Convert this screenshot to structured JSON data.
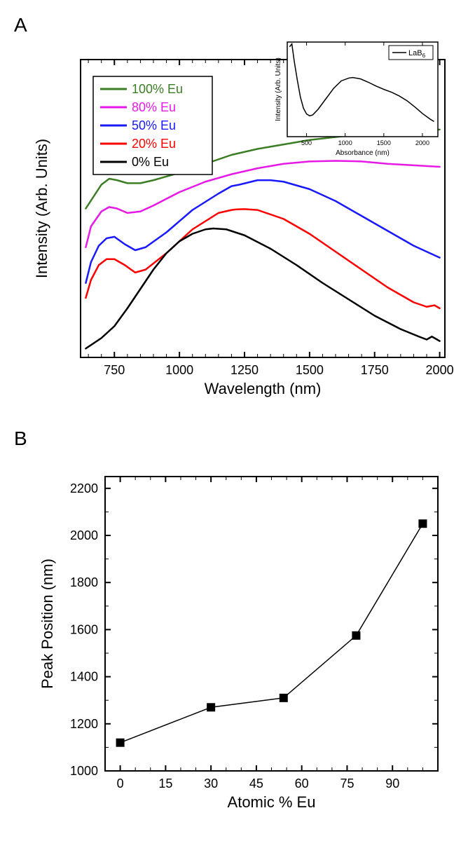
{
  "panelA": {
    "label": "A",
    "label_fontsize": 28,
    "main_chart": {
      "type": "line",
      "xlabel": "Wavelength (nm)",
      "ylabel": "Intensity (Arb. Units)",
      "label_fontsize": 22,
      "tick_fontsize": 18,
      "xlim": [
        620,
        2020
      ],
      "xticks": [
        750,
        1000,
        1250,
        1500,
        1750,
        2000
      ],
      "ylim": [
        0,
        10
      ],
      "background_color": "#ffffff",
      "axis_color": "#000000",
      "axis_width": 2,
      "line_width": 2.5,
      "series": [
        {
          "label": "100% Eu",
          "color": "#3b7d23",
          "points": [
            [
              640,
              5.0
            ],
            [
              670,
              5.4
            ],
            [
              700,
              5.8
            ],
            [
              730,
              6.0
            ],
            [
              760,
              5.95
            ],
            [
              800,
              5.85
            ],
            [
              850,
              5.85
            ],
            [
              900,
              5.95
            ],
            [
              1000,
              6.2
            ],
            [
              1100,
              6.5
            ],
            [
              1200,
              6.8
            ],
            [
              1300,
              7.0
            ],
            [
              1400,
              7.15
            ],
            [
              1500,
              7.3
            ],
            [
              1600,
              7.4
            ],
            [
              1700,
              7.5
            ],
            [
              1800,
              7.55
            ],
            [
              1900,
              7.6
            ],
            [
              2000,
              7.65
            ]
          ]
        },
        {
          "label": "80% Eu",
          "color": "#e619e6",
          "points": [
            [
              640,
              3.7
            ],
            [
              660,
              4.4
            ],
            [
              700,
              4.9
            ],
            [
              730,
              5.05
            ],
            [
              760,
              5.0
            ],
            [
              800,
              4.85
            ],
            [
              850,
              4.9
            ],
            [
              900,
              5.1
            ],
            [
              1000,
              5.55
            ],
            [
              1100,
              5.9
            ],
            [
              1200,
              6.15
            ],
            [
              1300,
              6.35
            ],
            [
              1400,
              6.5
            ],
            [
              1500,
              6.58
            ],
            [
              1600,
              6.6
            ],
            [
              1700,
              6.58
            ],
            [
              1800,
              6.5
            ],
            [
              1900,
              6.45
            ],
            [
              2000,
              6.4
            ]
          ]
        },
        {
          "label": "50% Eu",
          "color": "#1919ff",
          "points": [
            [
              640,
              2.5
            ],
            [
              660,
              3.2
            ],
            [
              690,
              3.75
            ],
            [
              720,
              4.0
            ],
            [
              750,
              4.05
            ],
            [
              790,
              3.8
            ],
            [
              830,
              3.6
            ],
            [
              870,
              3.7
            ],
            [
              950,
              4.2
            ],
            [
              1050,
              4.95
            ],
            [
              1150,
              5.5
            ],
            [
              1200,
              5.75
            ],
            [
              1230,
              5.8
            ],
            [
              1300,
              5.95
            ],
            [
              1350,
              5.95
            ],
            [
              1400,
              5.9
            ],
            [
              1500,
              5.65
            ],
            [
              1600,
              5.25
            ],
            [
              1700,
              4.75
            ],
            [
              1800,
              4.25
            ],
            [
              1900,
              3.75
            ],
            [
              2000,
              3.35
            ]
          ]
        },
        {
          "label": "20% Eu",
          "color": "#ff0000",
          "points": [
            [
              640,
              2.0
            ],
            [
              660,
              2.6
            ],
            [
              690,
              3.1
            ],
            [
              720,
              3.3
            ],
            [
              750,
              3.3
            ],
            [
              790,
              3.1
            ],
            [
              830,
              2.85
            ],
            [
              870,
              2.95
            ],
            [
              950,
              3.5
            ],
            [
              1050,
              4.3
            ],
            [
              1150,
              4.85
            ],
            [
              1200,
              4.95
            ],
            [
              1220,
              4.97
            ],
            [
              1250,
              4.98
            ],
            [
              1300,
              4.95
            ],
            [
              1400,
              4.65
            ],
            [
              1500,
              4.15
            ],
            [
              1600,
              3.55
            ],
            [
              1700,
              2.95
            ],
            [
              1800,
              2.35
            ],
            [
              1900,
              1.85
            ],
            [
              1950,
              1.7
            ],
            [
              1980,
              1.75
            ],
            [
              2000,
              1.65
            ]
          ]
        },
        {
          "label": "0% Eu",
          "color": "#000000",
          "points": [
            [
              640,
              0.3
            ],
            [
              700,
              0.65
            ],
            [
              750,
              1.05
            ],
            [
              800,
              1.65
            ],
            [
              850,
              2.3
            ],
            [
              900,
              2.95
            ],
            [
              950,
              3.5
            ],
            [
              1000,
              3.9
            ],
            [
              1050,
              4.15
            ],
            [
              1100,
              4.3
            ],
            [
              1130,
              4.33
            ],
            [
              1180,
              4.3
            ],
            [
              1250,
              4.1
            ],
            [
              1350,
              3.65
            ],
            [
              1450,
              3.1
            ],
            [
              1550,
              2.5
            ],
            [
              1650,
              1.95
            ],
            [
              1750,
              1.4
            ],
            [
              1850,
              0.95
            ],
            [
              1920,
              0.7
            ],
            [
              1950,
              0.6
            ],
            [
              1970,
              0.7
            ],
            [
              2000,
              0.55
            ]
          ]
        }
      ],
      "legend": {
        "position": "top-left",
        "fontsize": 18,
        "border_color": "#000000",
        "background_color": "#ffffff"
      }
    },
    "inset_chart": {
      "type": "line",
      "xlabel": "Absorbance (nm)",
      "ylabel": "Intensity (Arb. Units)",
      "label_fontsize": 10,
      "tick_fontsize": 9,
      "xlim": [
        250,
        2200
      ],
      "xticks": [
        500,
        1000,
        1500,
        2000
      ],
      "ylim": [
        0,
        10
      ],
      "axis_color": "#000000",
      "line_color": "#000000",
      "line_width": 1.5,
      "legend_label": "LaB₆",
      "points": [
        [
          280,
          9.5
        ],
        [
          310,
          9.8
        ],
        [
          340,
          8.0
        ],
        [
          380,
          6.0
        ],
        [
          420,
          4.2
        ],
        [
          460,
          3.0
        ],
        [
          500,
          2.4
        ],
        [
          540,
          2.2
        ],
        [
          580,
          2.3
        ],
        [
          650,
          2.9
        ],
        [
          750,
          4.0
        ],
        [
          850,
          5.1
        ],
        [
          950,
          5.9
        ],
        [
          1050,
          6.2
        ],
        [
          1100,
          6.25
        ],
        [
          1200,
          6.1
        ],
        [
          1300,
          5.75
        ],
        [
          1400,
          5.35
        ],
        [
          1500,
          5.0
        ],
        [
          1600,
          4.7
        ],
        [
          1700,
          4.3
        ],
        [
          1800,
          3.8
        ],
        [
          1900,
          3.15
        ],
        [
          2000,
          2.45
        ],
        [
          2100,
          1.85
        ],
        [
          2150,
          1.6
        ]
      ]
    }
  },
  "panelB": {
    "label": "B",
    "label_fontsize": 28,
    "chart": {
      "type": "scatter-line",
      "xlabel": "Atomic % Eu",
      "ylabel": "Peak Position (nm)",
      "label_fontsize": 22,
      "tick_fontsize": 18,
      "xlim": [
        -5,
        105
      ],
      "xticks": [
        0,
        15,
        30,
        45,
        60,
        75,
        90
      ],
      "ylim": [
        1000,
        2250
      ],
      "yticks": [
        1000,
        1200,
        1400,
        1600,
        1800,
        2000,
        2200
      ],
      "background_color": "#ffffff",
      "axis_color": "#000000",
      "axis_width": 2,
      "marker_color": "#000000",
      "marker_size": 12,
      "line_color": "#000000",
      "line_width": 1.5,
      "points": [
        [
          0,
          1120
        ],
        [
          30,
          1270
        ],
        [
          54,
          1310
        ],
        [
          78,
          1575
        ],
        [
          100,
          2050
        ]
      ]
    }
  }
}
